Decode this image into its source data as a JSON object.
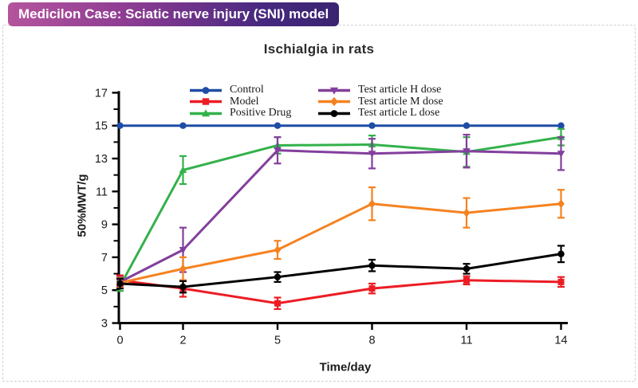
{
  "header": {
    "badge": "Medicilon Case: Sciatic nerve injury (SNI) model",
    "badge_gradient_left": "#b5549d",
    "badge_gradient_right": "#3a2470",
    "badge_text_color": "#ffffff"
  },
  "chart_data": {
    "type": "line",
    "title": "Ischialgia in rats",
    "xlabel": "Time/day",
    "ylabel": "50%MWT/g",
    "x": [
      0,
      2,
      5,
      8,
      11,
      14
    ],
    "x_ticks": [
      0,
      2,
      5,
      8,
      11,
      14
    ],
    "xlim": [
      0,
      14
    ],
    "ylim": [
      3,
      17
    ],
    "y_major_ticks": [
      3,
      5,
      7,
      9,
      11,
      13,
      15,
      17
    ],
    "y_minor_ticks": [
      4,
      6,
      8,
      10,
      12,
      14,
      16
    ],
    "grid": false,
    "legend_position": "inside-top, two columns",
    "error_bars": "symmetric vertical with caps",
    "series": [
      {
        "name": "Control",
        "color": "#1e4da5",
        "marker": "circle",
        "values": [
          15,
          15,
          15,
          15,
          15,
          15
        ],
        "errors": [
          0,
          0,
          0,
          0,
          0,
          0
        ]
      },
      {
        "name": "Model",
        "color": "#ec1c24",
        "marker": "square",
        "values": [
          5.6,
          5.1,
          4.2,
          5.1,
          5.6,
          5.5
        ],
        "errors": [
          0.3,
          0.5,
          0.35,
          0.3,
          0.25,
          0.3
        ]
      },
      {
        "name": "Positive Drug",
        "color": "#33b14b",
        "marker": "triangle-up",
        "values": [
          5.25,
          12.3,
          13.8,
          13.85,
          13.4,
          14.3
        ],
        "errors": [
          0.3,
          0.85,
          0.5,
          0.55,
          0.9,
          0.5
        ]
      },
      {
        "name": "Test article H dose",
        "color": "#833f9d",
        "marker": "triangle-down",
        "values": [
          5.5,
          7.45,
          13.5,
          13.3,
          13.45,
          13.3
        ],
        "errors": [
          0.3,
          1.35,
          0.8,
          0.9,
          1.0,
          1.0
        ]
      },
      {
        "name": "Test article M dose",
        "color": "#f58220",
        "marker": "diamond",
        "values": [
          5.45,
          6.3,
          7.45,
          10.25,
          9.7,
          10.25
        ],
        "errors": [
          0.3,
          0.7,
          0.55,
          1.0,
          0.9,
          0.85
        ]
      },
      {
        "name": "Test article L dose",
        "color": "#000000",
        "marker": "circle",
        "values": [
          5.4,
          5.2,
          5.8,
          6.5,
          6.3,
          7.2
        ],
        "errors": [
          0.3,
          0.35,
          0.3,
          0.35,
          0.3,
          0.5
        ]
      }
    ]
  }
}
